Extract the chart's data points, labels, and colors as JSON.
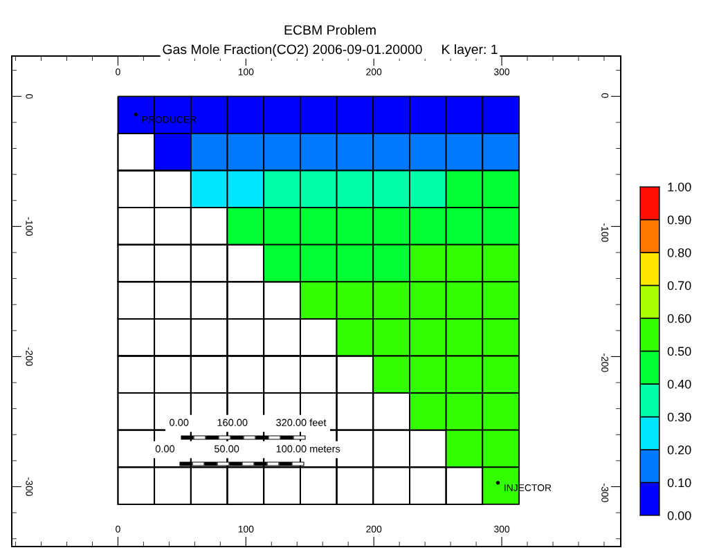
{
  "chart_data": {
    "type": "heatmap",
    "title": "ECBM Problem",
    "subtitle": "Gas Mole Fraction(CO2) 2006-09-01.20000     K layer: 1",
    "x": [
      14.25,
      42.75,
      71.25,
      99.75,
      128.25,
      156.75,
      185.25,
      213.75,
      242.25,
      270.75,
      299.25
    ],
    "y": [
      -14.25,
      -42.75,
      -71.25,
      -99.75,
      -128.25,
      -156.75,
      -185.25,
      -213.75,
      -242.25,
      -270.75,
      -299.25
    ],
    "cells": [
      [
        0.05,
        0.05,
        0.05,
        0.05,
        0.05,
        0.05,
        0.05,
        0.05,
        0.05,
        0.05,
        0.05
      ],
      [
        null,
        0.05,
        0.15,
        0.15,
        0.15,
        0.15,
        0.15,
        0.15,
        0.15,
        0.15,
        0.15
      ],
      [
        null,
        null,
        0.25,
        0.25,
        0.35,
        0.35,
        0.35,
        0.35,
        0.35,
        0.45,
        0.45
      ],
      [
        null,
        null,
        null,
        0.45,
        0.45,
        0.45,
        0.45,
        0.45,
        0.45,
        0.45,
        0.45
      ],
      [
        null,
        null,
        null,
        null,
        0.45,
        0.45,
        0.45,
        0.45,
        0.55,
        0.55,
        0.55
      ],
      [
        null,
        null,
        null,
        null,
        null,
        0.55,
        0.55,
        0.55,
        0.55,
        0.55,
        0.55
      ],
      [
        null,
        null,
        null,
        null,
        null,
        null,
        0.55,
        0.55,
        0.55,
        0.55,
        0.55
      ],
      [
        null,
        null,
        null,
        null,
        null,
        null,
        null,
        0.55,
        0.55,
        0.55,
        0.55
      ],
      [
        null,
        null,
        null,
        null,
        null,
        null,
        null,
        null,
        0.55,
        0.55,
        0.55
      ],
      [
        null,
        null,
        null,
        null,
        null,
        null,
        null,
        null,
        null,
        0.55,
        0.55
      ],
      [
        null,
        null,
        null,
        null,
        null,
        null,
        null,
        null,
        null,
        null,
        0.55
      ]
    ],
    "colors": [
      "#0000ff",
      "#0078ff",
      "#00e6ff",
      "#00ffaa",
      "#00ff33",
      "#33ff00",
      "#aaff00",
      "#ffe600",
      "#ff7800",
      "#ff1000"
    ],
    "clim": [
      0,
      1
    ],
    "cticks": [
      {
        "value": 0,
        "label": "0.00"
      },
      {
        "value": 0.1,
        "label": "0.10"
      },
      {
        "value": 0.2,
        "label": "0.20"
      },
      {
        "value": 0.3,
        "label": "0.30"
      },
      {
        "value": 0.4,
        "label": "0.40"
      },
      {
        "value": 0.5,
        "label": "0.50"
      },
      {
        "value": 0.6,
        "label": "0.60"
      },
      {
        "value": 0.7,
        "label": "0.70"
      },
      {
        "value": 0.8,
        "label": "0.80"
      },
      {
        "value": 0.9,
        "label": "0.90"
      },
      {
        "value": 1,
        "label": "1.00"
      }
    ],
    "xlim": [
      -83,
      393
    ],
    "xticks": [
      0,
      100,
      200,
      300
    ],
    "ylim": [
      -346,
      31
    ],
    "yticks": [
      0,
      -100,
      -200,
      -300
    ],
    "x2lim": [
      -83,
      393
    ],
    "x2ticks": [
      0,
      100,
      200,
      300
    ],
    "y2lim": [
      -346,
      31
    ],
    "y2ticks": [
      0,
      -100,
      -200,
      -300
    ],
    "grid": false,
    "annotations": [
      {
        "text": "PRODUCER",
        "x": 14,
        "y": -14
      },
      {
        "text": "INJECTOR",
        "x": 297,
        "y": -297
      },
      "0.00          160.00          320.00 feet",
      "0.00              50.00             100.00 meters"
    ]
  }
}
